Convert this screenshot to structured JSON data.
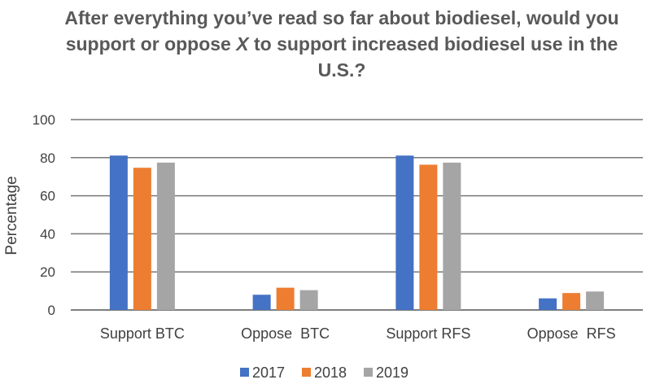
{
  "chart_data": {
    "type": "bar",
    "title_parts": [
      "After everything you’ve read so far about biodiesel, would you support or oppose ",
      "X",
      " to support increased biodiesel use in the U.S.?"
    ],
    "xlabel": "",
    "ylabel": "Percentage",
    "ylim": [
      0,
      100
    ],
    "yticks": [
      "0",
      "20",
      "40",
      "60",
      "80",
      "100"
    ],
    "grid": true,
    "legend_position": "bottom",
    "categories": [
      "Support BTC",
      "Oppose  BTC",
      "Support RFS",
      "Oppose  RFS"
    ],
    "series": [
      {
        "name": "2017",
        "color": "#4472c4",
        "values": [
          81.1,
          8.0,
          81.1,
          6.1
        ]
      },
      {
        "name": "2018",
        "color": "#ed7d31",
        "values": [
          74.7,
          11.7,
          76.3,
          8.9
        ]
      },
      {
        "name": "2019",
        "color": "#a5a5a5",
        "values": [
          77.4,
          10.4,
          77.4,
          9.7
        ]
      }
    ]
  }
}
